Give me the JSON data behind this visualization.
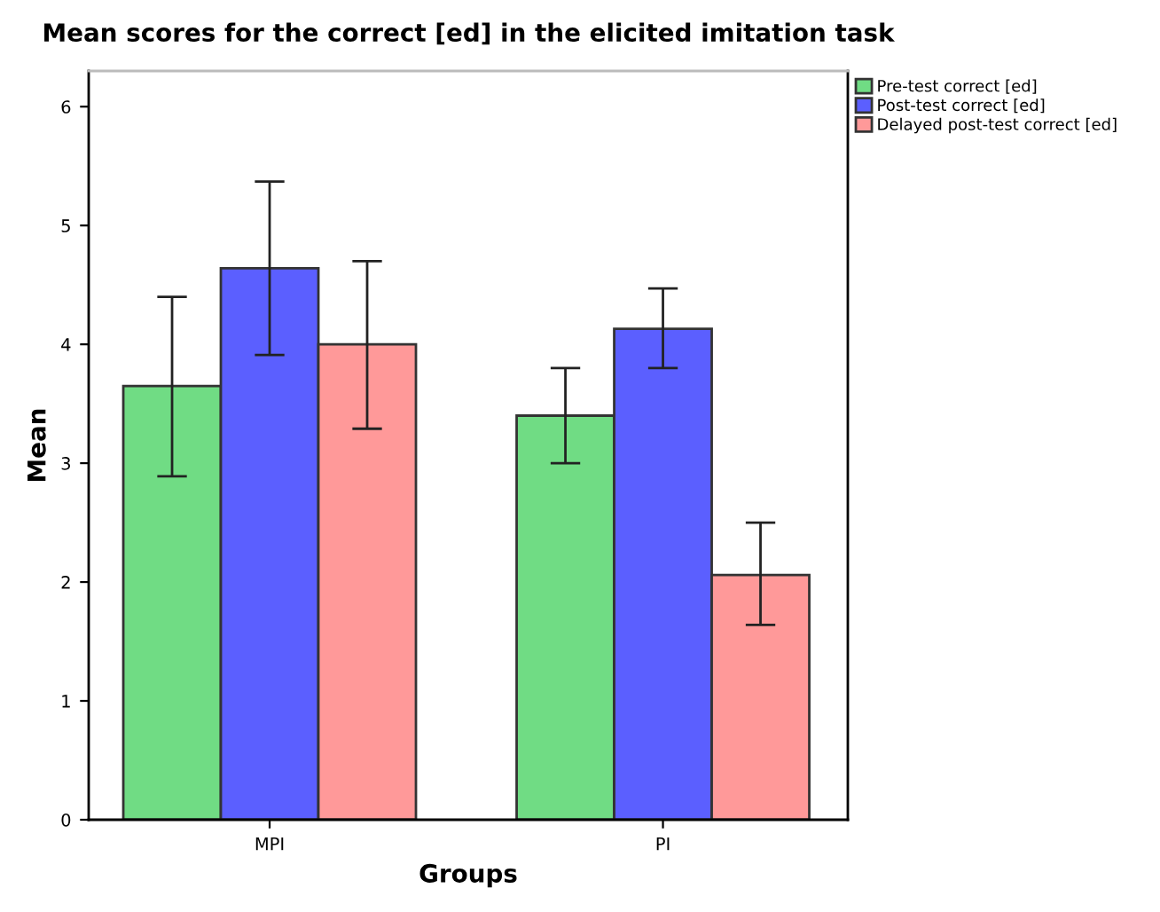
{
  "chart_data": {
    "type": "bar",
    "title": "Mean scores for the correct [ed] in the elicited imitation task",
    "xlabel": "Groups",
    "ylabel": "Mean",
    "categories": [
      "MPI",
      "PI"
    ],
    "series": [
      {
        "name": "Pre-test correct [ed]",
        "color": "#70dc84",
        "values": [
          3.65,
          3.4
        ],
        "errors": [
          [
            2.89,
            4.4
          ],
          [
            3.0,
            3.8
          ]
        ]
      },
      {
        "name": "Post-test correct [ed]",
        "color": "#5b5fff",
        "values": [
          4.64,
          4.13
        ],
        "errors": [
          [
            3.91,
            5.37
          ],
          [
            3.8,
            4.47
          ]
        ]
      },
      {
        "name": "Delayed post-test correct [ed]",
        "color": "#ff9999",
        "values": [
          4.0,
          2.06
        ],
        "errors": [
          [
            3.29,
            4.7
          ],
          [
            1.64,
            2.5
          ]
        ]
      }
    ],
    "ylim": [
      0,
      6.3
    ],
    "yticks": [
      0,
      1,
      2,
      3,
      4,
      5,
      6
    ],
    "grid": false,
    "legend": "top right"
  }
}
